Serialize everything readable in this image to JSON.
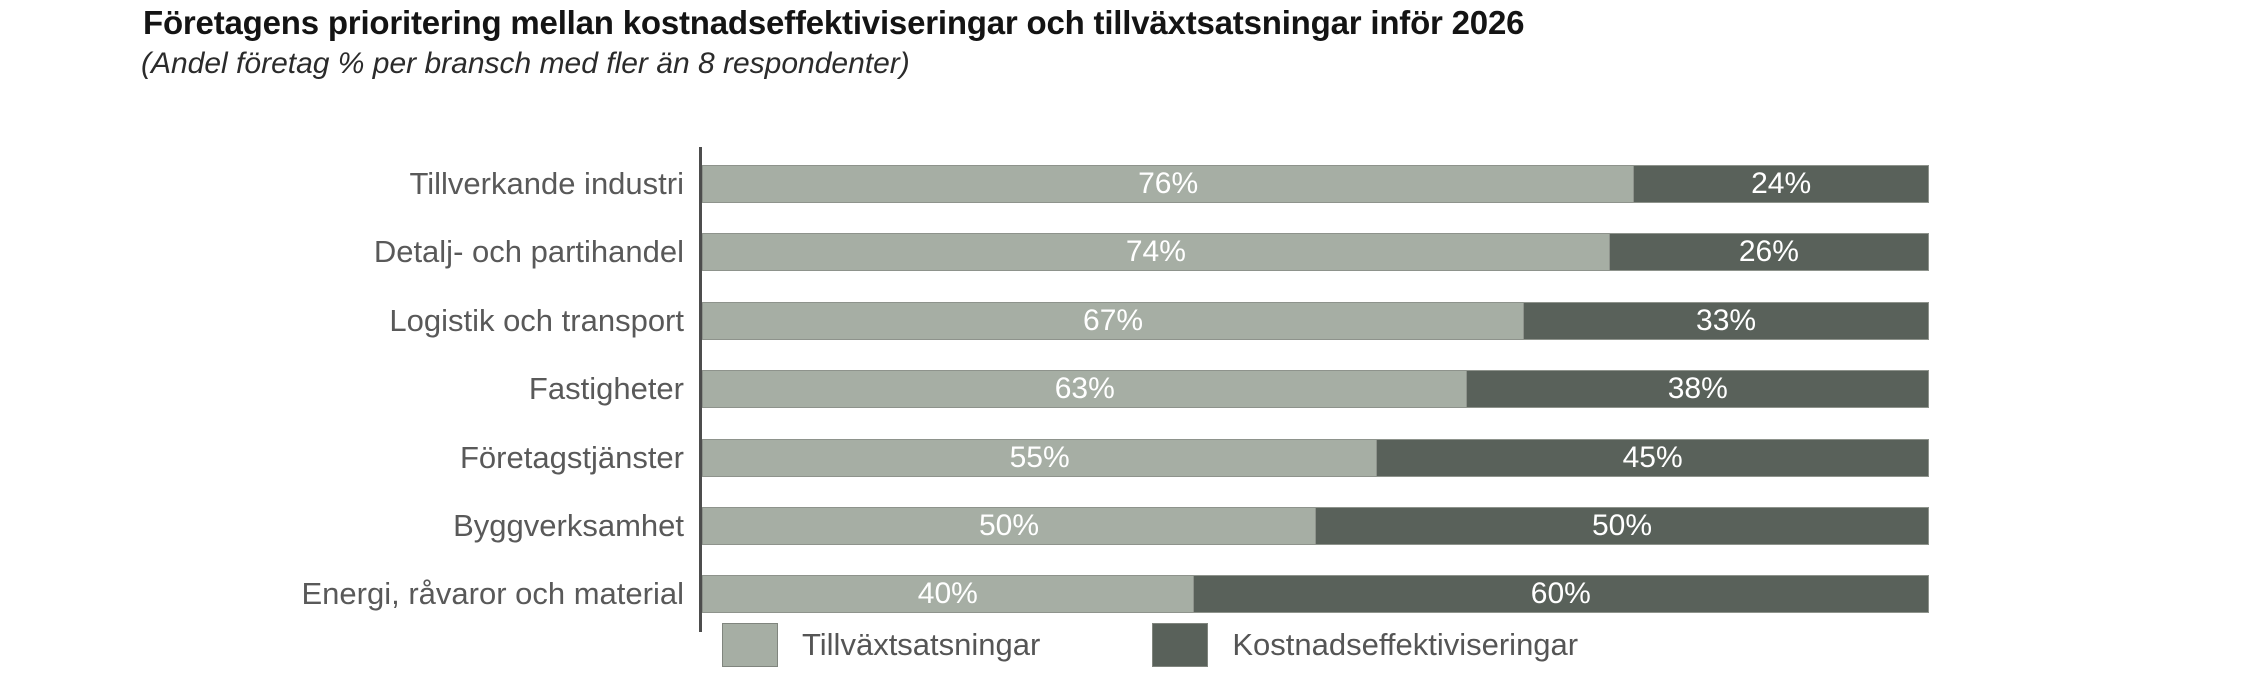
{
  "header": {
    "title": "Företagens prioritering mellan kostnadseffektiviseringar och tillväxtsatsningar inför 2026",
    "subtitle": "(Andel företag % per bransch med fler än 8 respondenter)"
  },
  "chart_data": {
    "type": "bar",
    "orientation": "horizontal",
    "stacked": true,
    "title": "Företagens prioritering mellan kostnadseffektiviseringar och tillväxtsatsningar inför 2026",
    "subtitle": "(Andel företag % per bransch med fler än 8 respondenter)",
    "categories": [
      "Tillverkande industri",
      "Detalj- och partihandel",
      "Logistik och transport",
      "Fastigheter",
      "Företagstjänster",
      "Byggverksamhet",
      "Energi, råvaror och material"
    ],
    "series": [
      {
        "name": "Tillväxtsatsningar",
        "color": "#a6aea4",
        "values": [
          76,
          74,
          67,
          63,
          55,
          50,
          40
        ]
      },
      {
        "name": "Kostnadseffektiviseringar",
        "color": "#59615a",
        "values": [
          24,
          26,
          33,
          38,
          45,
          50,
          60
        ]
      }
    ],
    "value_label_suffix": "%",
    "value_labels_inside": true,
    "xlim": [
      0,
      100
    ],
    "grid": false,
    "legend_position": "bottom"
  },
  "colors": {
    "background": "#ffffff",
    "bar_border": "#8e938c",
    "axis_line": "#4d4d4d",
    "category_label": "#595959",
    "value_label": "#ffffff",
    "title_text": "#141414"
  }
}
